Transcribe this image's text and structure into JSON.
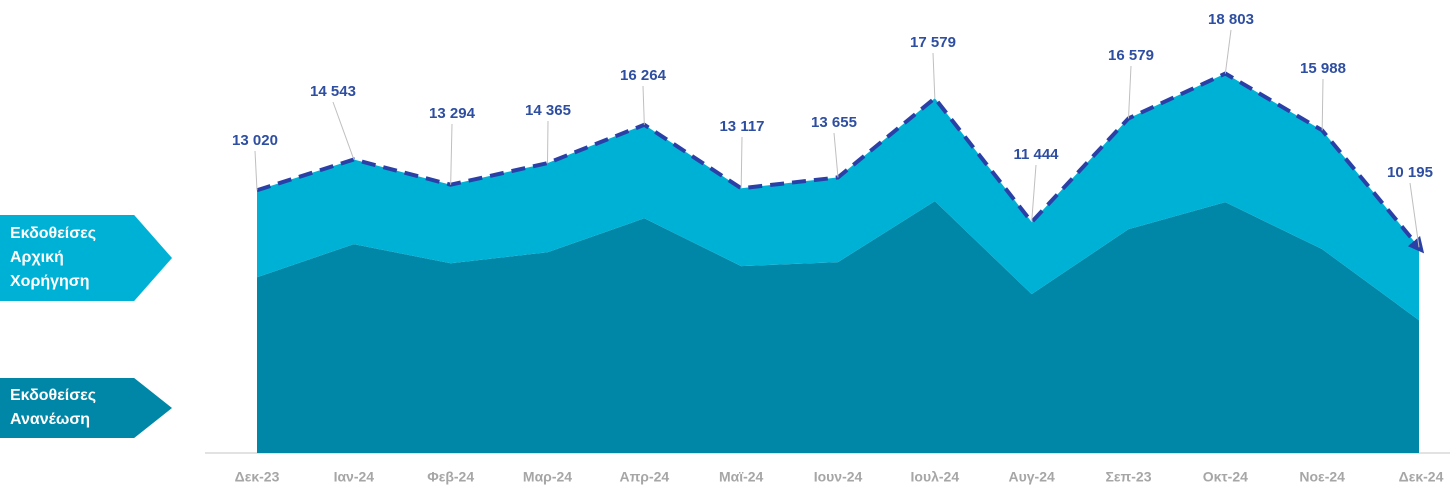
{
  "chart_data": {
    "type": "stacked_area",
    "categories": [
      "Δεκ-23",
      "Ιαν-24",
      "Φεβ-24",
      "Μαρ-24",
      "Απρ-24",
      "Μαϊ-24",
      "Ιουν-24",
      "Ιουλ-24",
      "Αυγ-24",
      "Σεπ-23",
      "Οκτ-24",
      "Νοε-24",
      "Δεκ-24"
    ],
    "series": [
      {
        "name": "Εκδοθείσες Ανανέωση",
        "color": "#0087a7",
        "values": [
          8710,
          10350,
          9400,
          9950,
          11630,
          9260,
          9460,
          12480,
          7870,
          11090,
          12430,
          10100,
          6580
        ]
      },
      {
        "name": "Εκδοθείσες Αρχική Χορήγηση",
        "color": "#00b1d6",
        "values": [
          4310,
          4193,
          3894,
          4415,
          4634,
          3857,
          4195,
          5099,
          3574,
          5489,
          6373,
          5888,
          3615
        ]
      }
    ],
    "total_labels": [
      "13 020",
      "14 543",
      "13 294",
      "14 365",
      "16 264",
      "13 117",
      "13 655",
      "17 579",
      "11 444",
      "16 579",
      "18 803",
      "15 988",
      "10 195"
    ],
    "total_line_color": "#2b40a6",
    "ylim": [
      0,
      22000
    ]
  }
}
